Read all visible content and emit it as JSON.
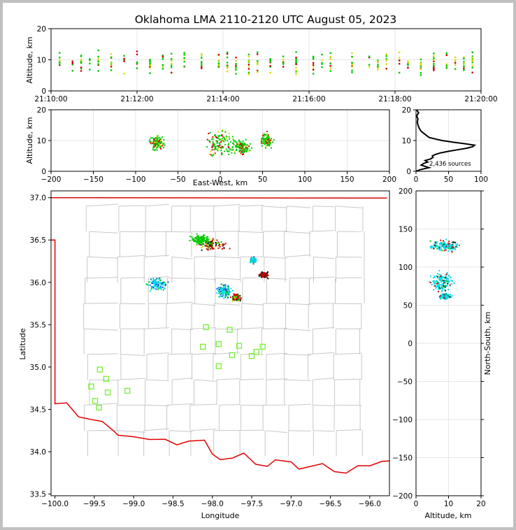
{
  "title": "Oklahoma LMA 2110-2120 UTC August 05, 2023",
  "source_count_label": "2,436 sources",
  "colors": {
    "frame": "#c0c0c0",
    "state_border": "#e00000",
    "county_lines": "#c8c8c8",
    "station": "#77ee33",
    "early": "#00ddee",
    "mid": "#00cc00",
    "late": "#cc0000",
    "latest": "#222222"
  },
  "chart_data": [
    {
      "id": "time_altitude",
      "type": "scatter",
      "title": "",
      "xlabel": "",
      "ylabel": "Altitude, km",
      "xlim": [
        "21:10:00",
        "21:20:00"
      ],
      "ylim": [
        0,
        20
      ],
      "x_ticks": [
        "21:10:00",
        "21:12:00",
        "21:14:00",
        "21:16:00",
        "21:18:00",
        "21:20:00"
      ],
      "y_ticks": [
        "0",
        "10",
        "20"
      ],
      "grid": true,
      "source_columns_min": [
        0.2,
        0.5,
        0.7,
        0.9,
        1.1,
        1.4,
        1.7,
        2.0,
        2.3,
        2.6,
        2.8,
        3.1,
        3.5,
        3.9,
        4.1,
        4.3,
        4.6,
        4.8,
        5.1,
        5.4,
        5.7,
        6.1,
        6.3,
        6.5,
        7.0,
        7.4,
        7.6,
        7.8,
        8.1,
        8.3,
        8.6,
        8.9,
        9.2,
        9.4,
        9.6,
        9.8
      ],
      "source_altitude_range_km": [
        1.5,
        16.5
      ]
    },
    {
      "id": "ew_altitude",
      "type": "scatter",
      "xlabel": "East-West, km",
      "ylabel": "Altitude, km",
      "xlim": [
        -200,
        200
      ],
      "ylim": [
        0,
        20
      ],
      "x_ticks": [
        "−200",
        "−150",
        "−100",
        "−50",
        "0",
        "50",
        "100",
        "150",
        "200"
      ],
      "y_ticks": [
        "0",
        "10",
        "20"
      ],
      "grid": true,
      "clusters": [
        {
          "x": -75,
          "y": 9,
          "spread": [
            8,
            2
          ]
        },
        {
          "x": 0,
          "y": 9,
          "spread": [
            15,
            4
          ]
        },
        {
          "x": 25,
          "y": 8,
          "spread": [
            10,
            2
          ]
        },
        {
          "x": 55,
          "y": 10,
          "spread": [
            6,
            2
          ]
        }
      ]
    },
    {
      "id": "altitude_histogram",
      "type": "line",
      "xlabel": "",
      "ylabel": "",
      "xlim": [
        0,
        100
      ],
      "ylim": [
        0,
        20
      ],
      "x_ticks": [
        "0",
        "50",
        "100"
      ],
      "y_ticks": [
        "0",
        "10",
        "20"
      ],
      "profile": [
        [
          0,
          0
        ],
        [
          6,
          0.5
        ],
        [
          20,
          1.2
        ],
        [
          8,
          2
        ],
        [
          12,
          2.6
        ],
        [
          18,
          3
        ],
        [
          14,
          3.5
        ],
        [
          22,
          4
        ],
        [
          26,
          4.5
        ],
        [
          25,
          5
        ],
        [
          30,
          5.5
        ],
        [
          38,
          6
        ],
        [
          50,
          6.5
        ],
        [
          64,
          7
        ],
        [
          78,
          7.5
        ],
        [
          87,
          8
        ],
        [
          90,
          8.5
        ],
        [
          74,
          9
        ],
        [
          56,
          9.5
        ],
        [
          40,
          10
        ],
        [
          30,
          10.5
        ],
        [
          20,
          11
        ],
        [
          14,
          12
        ],
        [
          8,
          13
        ],
        [
          5,
          14
        ],
        [
          3,
          15
        ],
        [
          2,
          16
        ],
        [
          3,
          17
        ],
        [
          1,
          18
        ],
        [
          4,
          19
        ],
        [
          1,
          20
        ]
      ]
    },
    {
      "id": "plan_view",
      "type": "scatter",
      "xlabel": "Longitude",
      "ylabel": "Latitude",
      "xlim": [
        -100.05,
        -95.75
      ],
      "ylim": [
        33.48,
        37.08
      ],
      "x_ticks": [
        "−100.0",
        "−99.5",
        "−99.0",
        "−98.5",
        "−98.0",
        "−97.5",
        "−97.0",
        "−96.5",
        "−96.0"
      ],
      "y_ticks": [
        "33.5",
        "34.0",
        "34.5",
        "35.0",
        "35.5",
        "36.0",
        "36.5",
        "37.0"
      ],
      "x_tick_values": [
        -100.0,
        -99.5,
        -99.0,
        -98.5,
        -98.0,
        -97.5,
        -97.0,
        -96.5,
        -96.0
      ],
      "y_tick_values": [
        33.5,
        34.0,
        34.5,
        35.0,
        35.5,
        36.0,
        36.5,
        37.0
      ],
      "stations": [
        [
          -98.08,
          35.47
        ],
        [
          -97.78,
          35.44
        ],
        [
          -98.12,
          35.24
        ],
        [
          -97.92,
          35.27
        ],
        [
          -97.66,
          35.25
        ],
        [
          -97.36,
          35.24
        ],
        [
          -97.44,
          35.18
        ],
        [
          -97.75,
          35.14
        ],
        [
          -97.5,
          35.13
        ],
        [
          -97.92,
          35.01
        ],
        [
          -99.43,
          34.97
        ],
        [
          -99.35,
          34.86
        ],
        [
          -99.54,
          34.77
        ],
        [
          -99.08,
          34.72
        ],
        [
          -99.33,
          34.7
        ],
        [
          -99.49,
          34.6
        ],
        [
          -99.44,
          34.52
        ]
      ],
      "clusters": [
        {
          "lon": -98.0,
          "lat": 36.45,
          "spread": [
            0.15,
            0.06
          ],
          "color": "late"
        },
        {
          "lon": -98.15,
          "lat": 36.5,
          "spread": [
            0.1,
            0.05
          ],
          "color": "mid"
        },
        {
          "lon": -98.7,
          "lat": 35.98,
          "spread": [
            0.12,
            0.06
          ],
          "color": "early"
        },
        {
          "lon": -97.85,
          "lat": 35.9,
          "spread": [
            0.08,
            0.08
          ],
          "color": "early"
        },
        {
          "lon": -97.7,
          "lat": 35.82,
          "spread": [
            0.05,
            0.04
          ],
          "color": "late"
        },
        {
          "lon": -97.35,
          "lat": 36.09,
          "spread": [
            0.05,
            0.03
          ],
          "color": "latest"
        },
        {
          "lon": -97.48,
          "lat": 36.26,
          "spread": [
            0.03,
            0.03
          ],
          "color": "early"
        }
      ]
    },
    {
      "id": "altitude_ns",
      "type": "scatter",
      "xlabel": "Altitude, km",
      "ylabel": "North-South, km",
      "xlim": [
        0,
        20
      ],
      "ylim": [
        -200,
        200
      ],
      "x_ticks": [
        "0",
        "10",
        "20"
      ],
      "y_ticks": [
        "−200",
        "−150",
        "−100",
        "−50",
        "0",
        "50",
        "100",
        "150",
        "200"
      ],
      "grid": true,
      "clusters": [
        {
          "alt": 9,
          "ns": 128,
          "spread": [
            4,
            6
          ]
        },
        {
          "alt": 8,
          "ns": 80,
          "spread": [
            3,
            12
          ]
        },
        {
          "alt": 9,
          "ns": 62,
          "spread": [
            1.5,
            3
          ]
        }
      ]
    }
  ]
}
